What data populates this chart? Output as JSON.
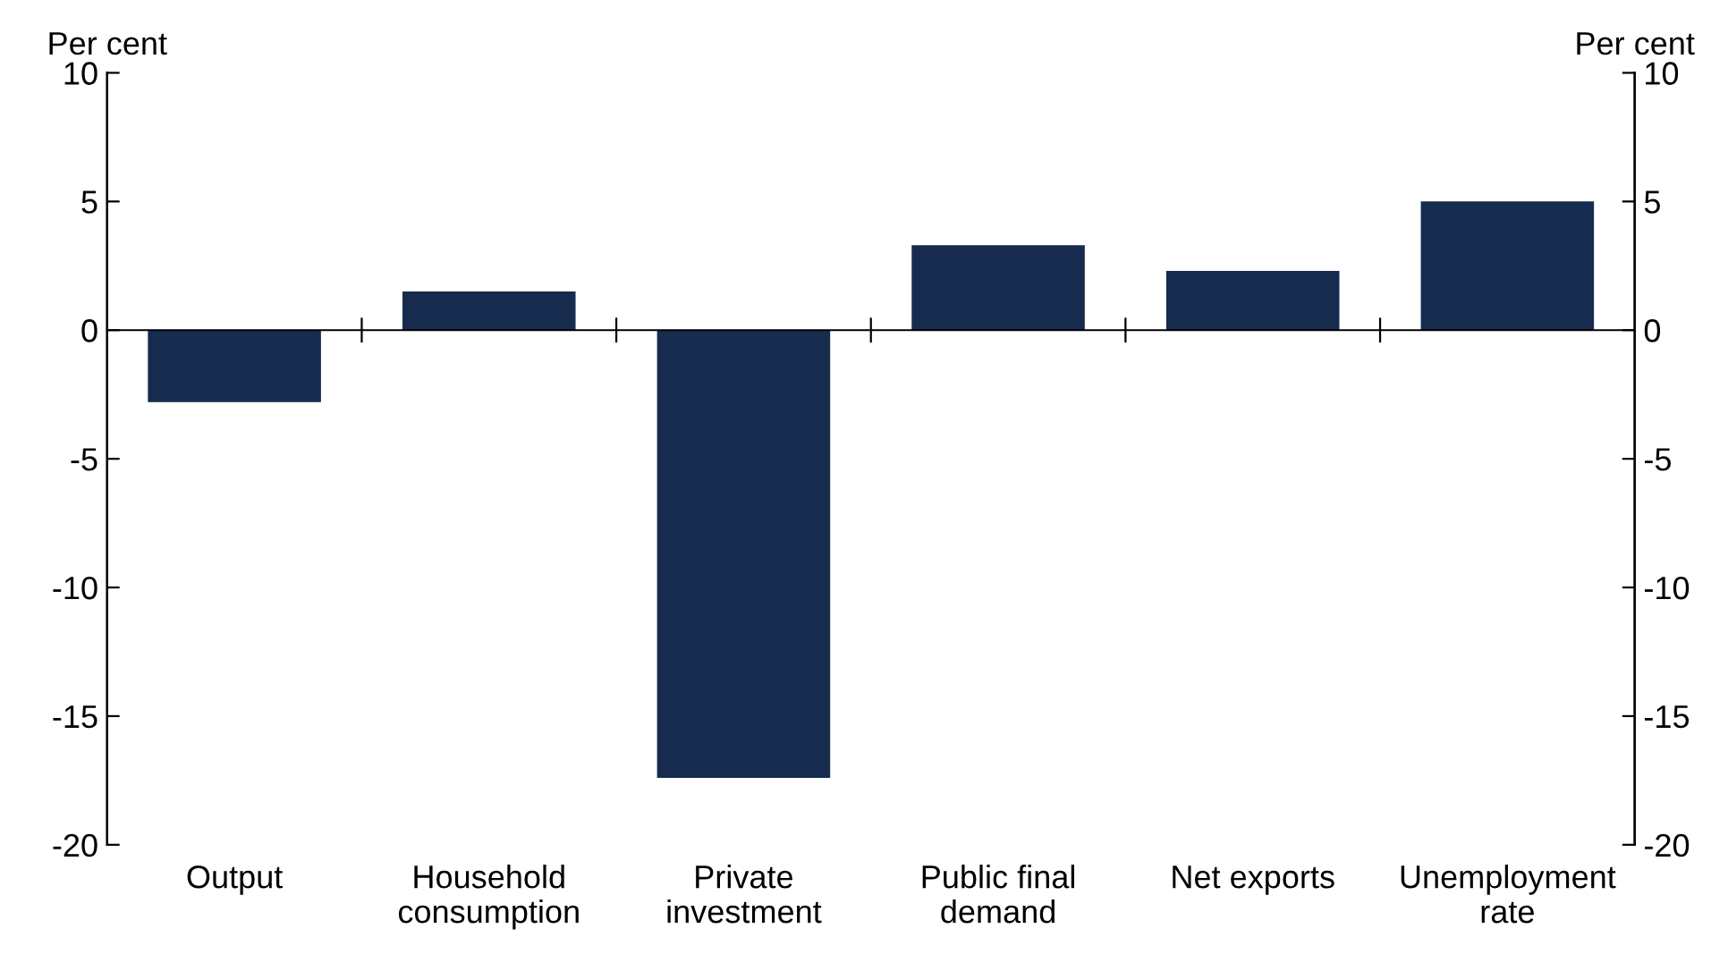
{
  "chart_data": {
    "type": "bar",
    "ylabel": "Per cent",
    "y2label": "Per cent",
    "categories": [
      "Output",
      "Household\nconsumption",
      "Private\ninvestment",
      "Public final\ndemand",
      "Net exports",
      "Unemployment\nrate"
    ],
    "series": [
      {
        "color": "#172b4f",
        "values": [
          -2.8,
          1.5,
          -17.4,
          3.3,
          2.3,
          5.0
        ]
      }
    ],
    "ylim": [
      -20,
      10
    ],
    "yticks": [
      {
        "value": -20,
        "label": "-20"
      },
      {
        "value": -15,
        "label": "-15"
      },
      {
        "value": -10,
        "label": "-10"
      },
      {
        "value": -5,
        "label": "-5"
      },
      0,
      5,
      10
    ],
    "y2lim": [
      -20,
      10
    ],
    "y2ticks": [
      {
        "value": -20,
        "label": "-20"
      },
      {
        "value": -15,
        "label": "-15"
      },
      {
        "value": -10,
        "label": "-10"
      },
      {
        "value": -5,
        "label": "-5"
      },
      0,
      5,
      10
    ],
    "legend": false
  }
}
